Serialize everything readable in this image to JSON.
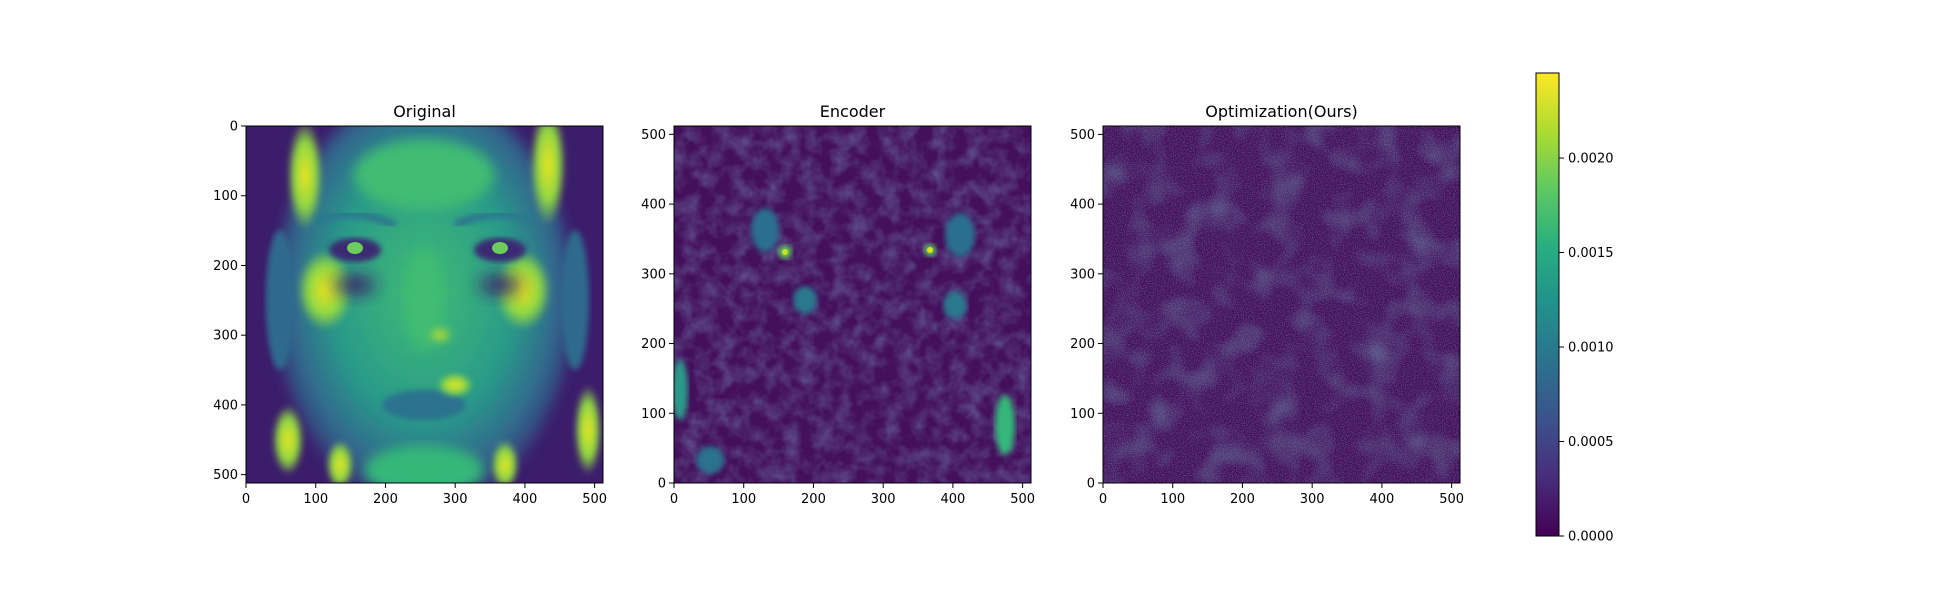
{
  "chart_data": [
    {
      "type": "heatmap",
      "title": "Original",
      "colormap": "viridis",
      "image_size": [
        512,
        512
      ],
      "origin": "upper",
      "content": "grayscale face image",
      "xticks": [
        0,
        100,
        200,
        300,
        400,
        500
      ],
      "yticks": [
        0,
        100,
        200,
        300,
        400,
        500
      ],
      "xlim": [
        0,
        512
      ],
      "ylim": [
        512,
        0
      ]
    },
    {
      "type": "heatmap",
      "title": "Encoder",
      "colormap": "viridis",
      "image_size": [
        512,
        512
      ],
      "origin": "lower",
      "content": "error map highlighting eyes and face contours",
      "xticks": [
        0,
        100,
        200,
        300,
        400,
        500
      ],
      "yticks": [
        0,
        100,
        200,
        300,
        400,
        500
      ],
      "xlim": [
        0,
        512
      ],
      "ylim": [
        0,
        512
      ]
    },
    {
      "type": "heatmap",
      "title": "Optimization(Ours)",
      "colormap": "viridis",
      "image_size": [
        512,
        512
      ],
      "origin": "lower",
      "content": "low, noise-like error map",
      "xticks": [
        0,
        100,
        200,
        300,
        400,
        500
      ],
      "yticks": [
        0,
        100,
        200,
        300,
        400,
        500
      ],
      "xlim": [
        0,
        512
      ],
      "ylim": [
        0,
        512
      ]
    }
  ],
  "colorbar": {
    "colormap": "viridis",
    "range": [
      0,
      0.00245
    ],
    "ticks": [
      0,
      0.0005,
      0.001,
      0.0015,
      0.002
    ],
    "tick_labels": [
      "0.0000",
      "0.0005",
      "0.0010",
      "0.0015",
      "0.0020"
    ]
  },
  "colors": {
    "viridis_low": "#440154",
    "viridis_mid": "#21918c",
    "viridis_high": "#fde725"
  }
}
